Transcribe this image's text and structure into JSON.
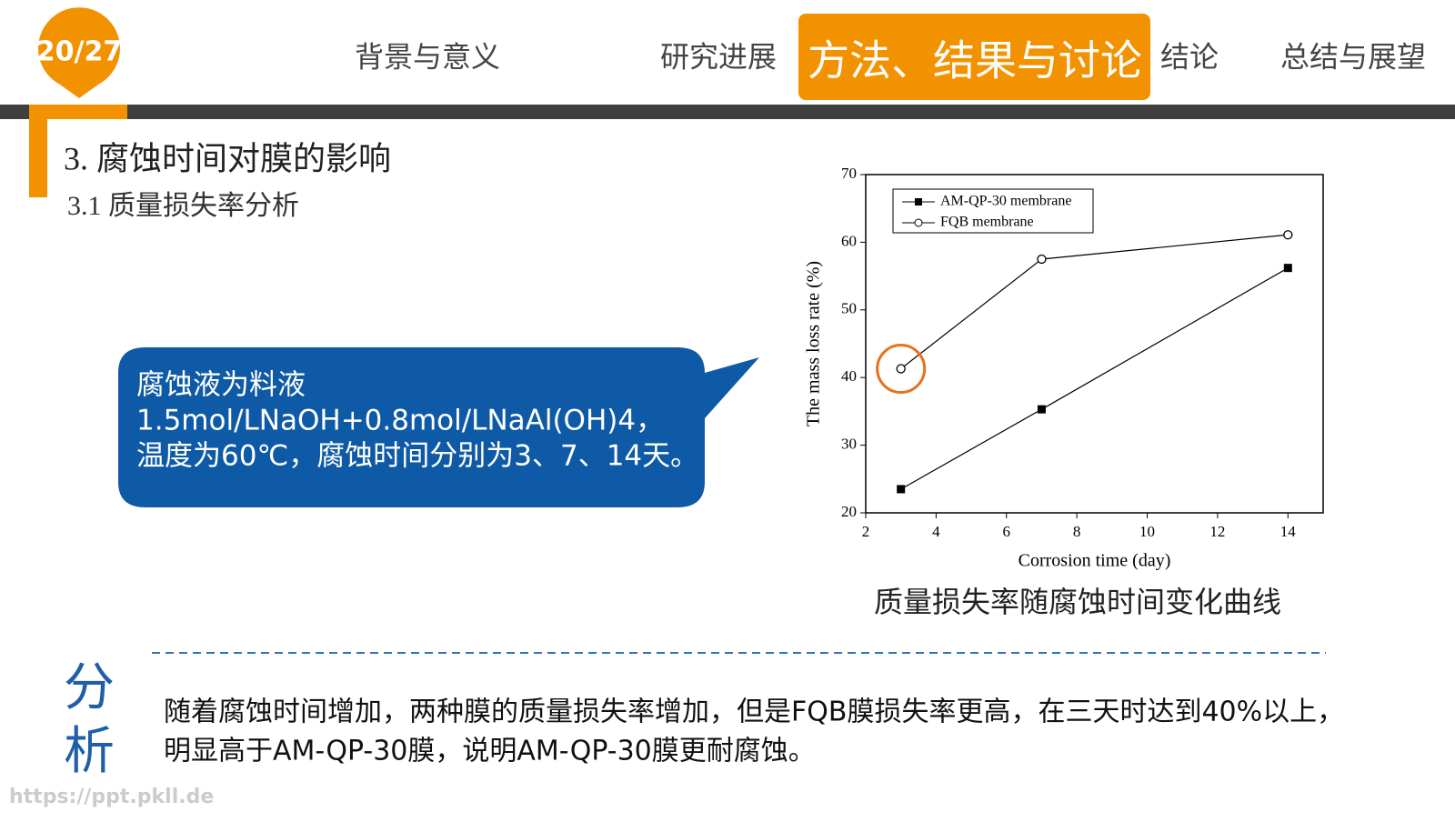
{
  "badge": "20/27",
  "nav": {
    "items": [
      "背景与意义",
      "研究进展",
      "方法、结果与讨论",
      "结论",
      "总结与展望"
    ],
    "active": 2
  },
  "section": {
    "title": "3. 腐蚀时间对膜的影响",
    "subtitle": "3.1  质量损失率分析"
  },
  "callout": {
    "lines": [
      "腐蚀液为料液",
      "1.5mol/LNaOH+0.8mol/LNaAl(OH)4，",
      "温度为60℃，腐蚀时间分别为3、7、14天。"
    ]
  },
  "chart_data": {
    "type": "line",
    "caption": "质量损失率随腐蚀时间变化曲线",
    "x_label": "Corrosion time (day)",
    "y_label": "The mass loss rate (%)",
    "x": [
      3,
      7,
      14
    ],
    "series": [
      {
        "name": "AM-QP-30 membrane",
        "color": "#000000",
        "marker": "square",
        "values": [
          23.5,
          35.3,
          56.2
        ]
      },
      {
        "name": "FQB membrane",
        "color": "#000000",
        "marker": "circle",
        "values": [
          41.3,
          57.5,
          61.1
        ]
      }
    ],
    "xlim": [
      2,
      15
    ],
    "xticks": [
      2,
      4,
      6,
      8,
      10,
      12,
      14
    ],
    "ylim": [
      20,
      70
    ],
    "yticks": [
      20,
      30,
      40,
      50,
      60,
      70
    ],
    "legend": "upper left"
  },
  "analysis": {
    "title": "分析",
    "lines": [
      "随着腐蚀时间增加，两种膜的质量损失率增加，但是FQB膜损失率更高，在三天时达到40%以上，",
      "明显高于AM-QP-30膜，说明AM-QP-30膜更耐腐蚀。"
    ]
  },
  "watermark": "https://ppt.pkll.de"
}
